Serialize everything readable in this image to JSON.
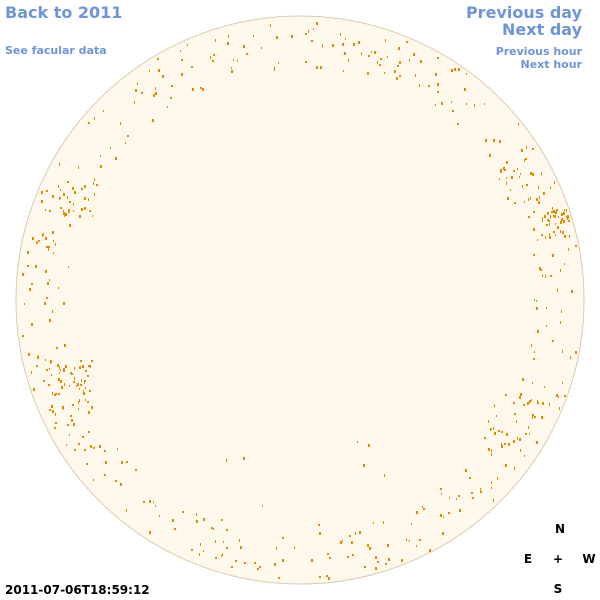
{
  "nav": {
    "back": "Back to 2011",
    "facular": "See facular data",
    "previous_day": "Previous day",
    "next_day": "Next day",
    "previous_hour": "Previous hour",
    "next_hour": "Next hour"
  },
  "compass": {
    "north": "N",
    "east": "E",
    "center": "+",
    "west": "W",
    "south": "S"
  },
  "timestamp": "2011-07-06T18:59:12",
  "colors": {
    "disk_fill": "#fef9ec",
    "disk_stroke": "#d8ccb0",
    "facula": "#e68a00",
    "link": "#6f95d7"
  }
}
